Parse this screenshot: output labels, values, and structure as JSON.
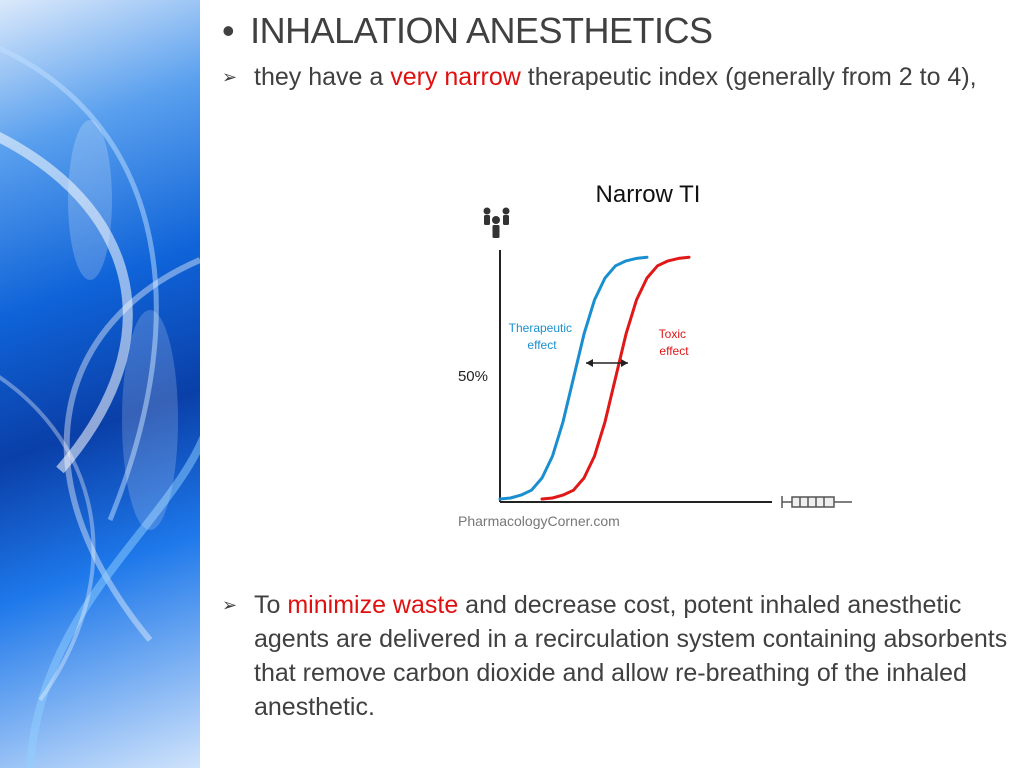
{
  "slide": {
    "title": "INHALATION ANESTHETICS",
    "points": [
      {
        "before": "they have a ",
        "highlight": "very narrow",
        "after": " therapeutic index (generally from 2 to 4),"
      },
      {
        "before": "To ",
        "highlight": "minimize waste",
        "after": " and decrease cost, potent inhaled anesthetic agents are delivered in a recirculation system containing absorbents that remove carbon dioxide and allow re-breathing of the inhaled anesthetic."
      }
    ],
    "bullet_glyph": "•",
    "arrow_glyph": "➢"
  },
  "chart_data": {
    "type": "line",
    "title": "Narrow TI",
    "ylabel_icon": "people-icon",
    "xlabel_icon": "syringe-icon",
    "ytick_label": "50%",
    "ytick_value": 50,
    "x": [
      0,
      5,
      10,
      15,
      20,
      25,
      30,
      35,
      40,
      45,
      50,
      55,
      60,
      65,
      70,
      75,
      80,
      85,
      90,
      95,
      100
    ],
    "xlim": [
      0,
      100
    ],
    "ylim": [
      0,
      100
    ],
    "series": [
      {
        "name": "Therapeutic effect",
        "label_lines": [
          "Therapeutic",
          "effect"
        ],
        "color": "#1a8fd0",
        "values": [
          0.4,
          0.8,
          2,
          4,
          9,
          18,
          32,
          50,
          68,
          82,
          91,
          96,
          98,
          99,
          99.5,
          null,
          null,
          null,
          null,
          null,
          null
        ]
      },
      {
        "name": "Toxic effect",
        "label_lines": [
          "Toxic",
          "effect"
        ],
        "color": "#e01818",
        "values": [
          null,
          null,
          null,
          null,
          0.4,
          0.8,
          2,
          4,
          9,
          18,
          32,
          50,
          68,
          82,
          91,
          96,
          98,
          99,
          99.5,
          null,
          null
        ]
      }
    ],
    "source": "PharmacologyCorner.com"
  },
  "colors": {
    "text": "#404040",
    "highlight": "#e01010",
    "axis": "#222222"
  }
}
